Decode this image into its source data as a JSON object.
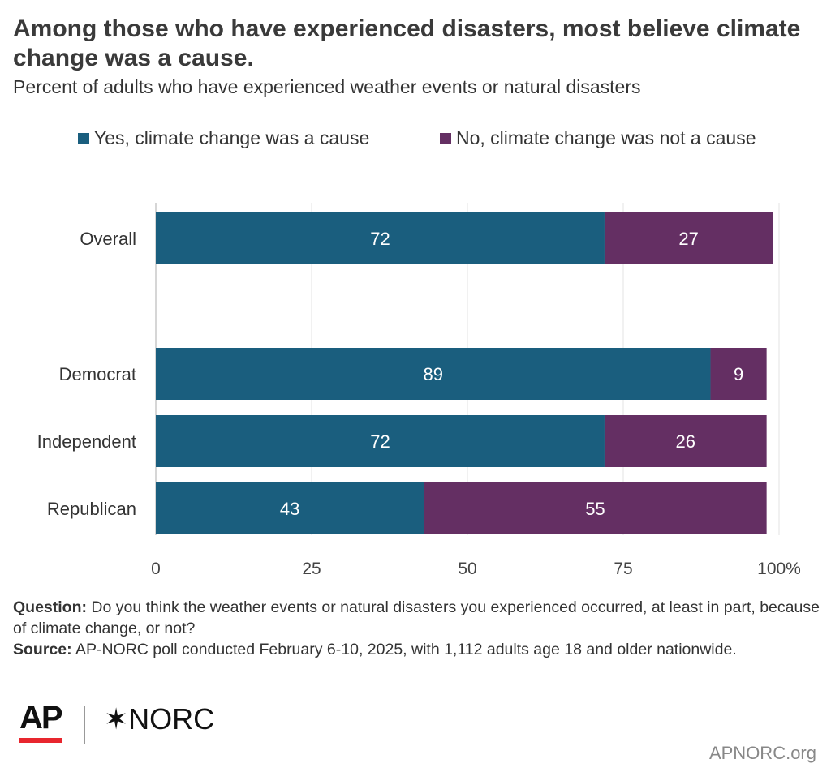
{
  "title": "Among those who have experienced disasters, most believe climate change was a cause.",
  "subtitle": "Percent of adults who have experienced weather events or natural disasters",
  "notes": {
    "question_label": "Question:",
    "question_text": " Do you think the weather events or natural disasters you experienced occurred, at least in part, because of climate change, or not?",
    "source_label": "Source:",
    "source_text": " AP-NORC poll conducted February 6-10, 2025, with 1,112 adults age 18 and older nationwide."
  },
  "logos": {
    "ap": "AP",
    "norc": "NORC",
    "norc_mark": "✶"
  },
  "footer_url": "APNORC.org",
  "chart_data": {
    "type": "bar",
    "orientation": "horizontal",
    "stacked": true,
    "categories": [
      "Overall",
      "Democrat",
      "Independent",
      "Republican"
    ],
    "series": [
      {
        "name": "Yes, climate change was a cause",
        "color": "#1a5e7e",
        "values": [
          72,
          89,
          72,
          43
        ]
      },
      {
        "name": "No, climate change was not a cause",
        "color": "#642f63",
        "values": [
          27,
          9,
          26,
          55
        ]
      }
    ],
    "xlim": [
      0,
      100
    ],
    "xticks": [
      "0",
      "25",
      "50",
      "75",
      "100%"
    ],
    "xtick_values": [
      0,
      25,
      50,
      75,
      100
    ],
    "grid": true,
    "legend": "top"
  }
}
